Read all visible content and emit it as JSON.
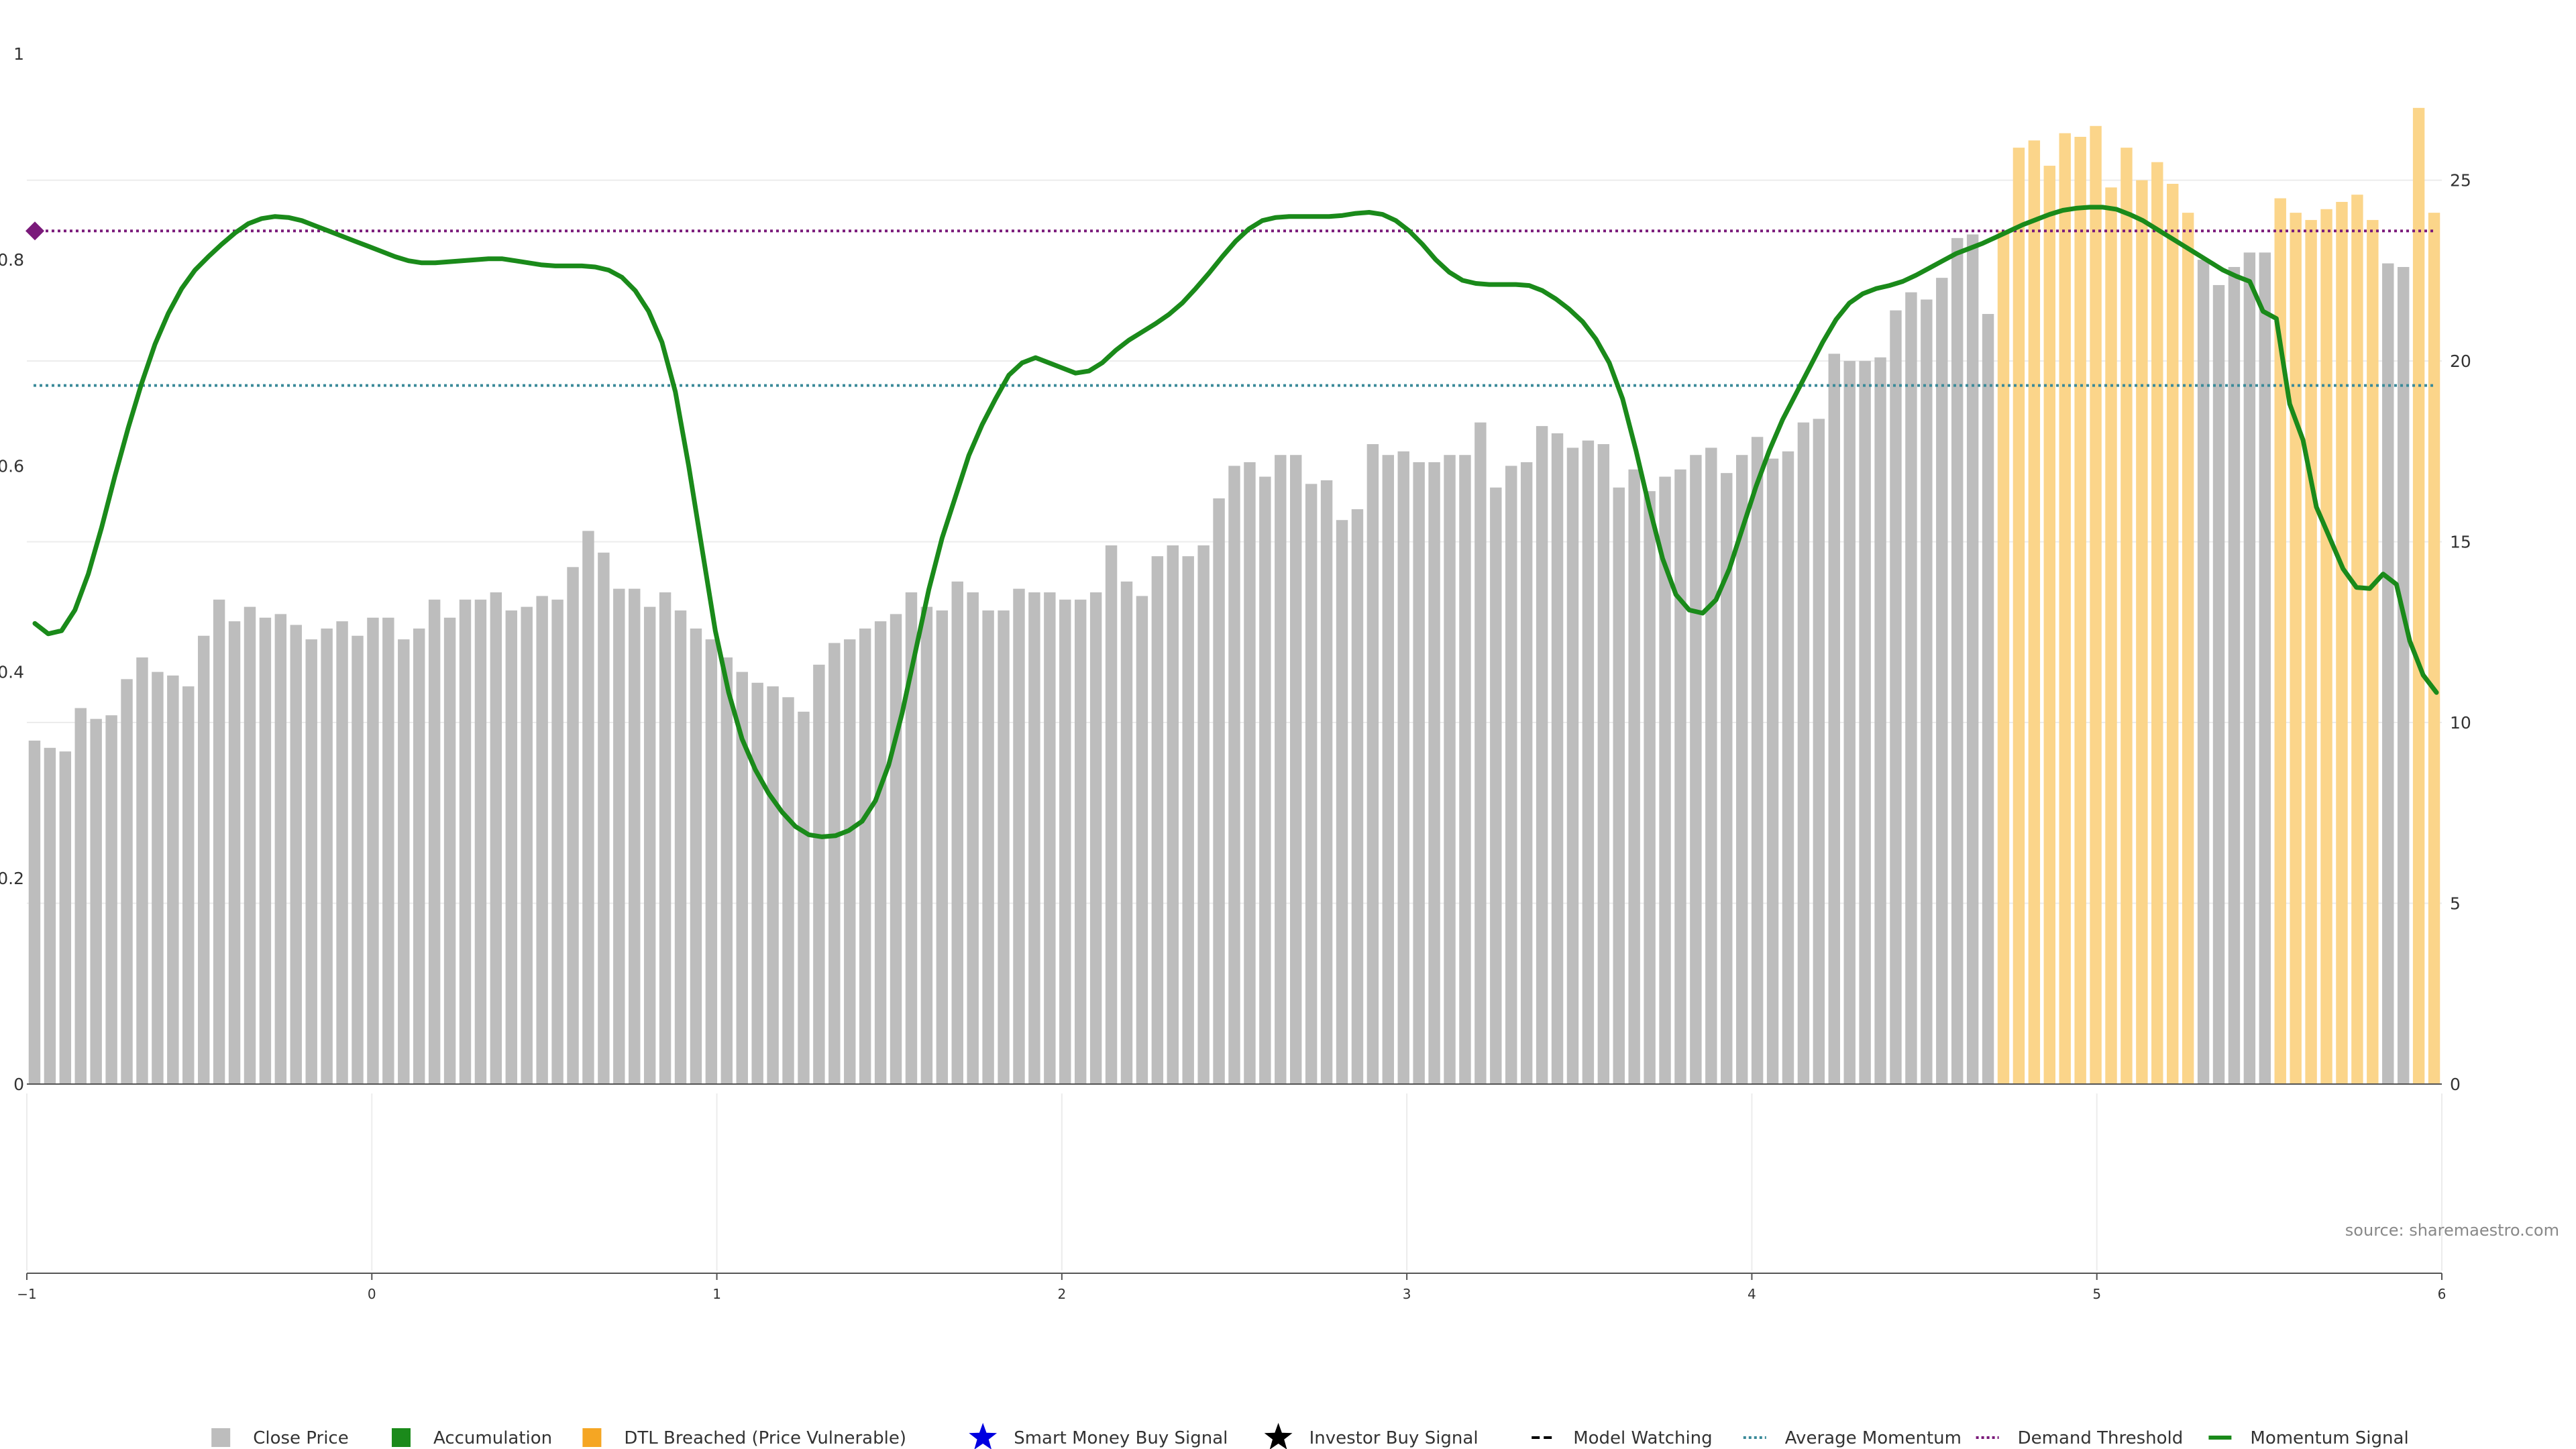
{
  "chart_data": {
    "type": "bar",
    "title": "",
    "xlabel": "",
    "ylabel": "",
    "y_left": {
      "ticks": [
        "0",
        "0.2",
        "0.4",
        "0.6",
        "0.8",
        "1"
      ],
      "range": [
        0,
        1
      ]
    },
    "y_right": {
      "ticks": [
        "0",
        "5",
        "10",
        "15",
        "20",
        "25"
      ],
      "range": [
        0,
        28.5
      ]
    },
    "x_axis": {
      "ticks": [
        "−1",
        "0",
        "1",
        "2",
        "3",
        "4",
        "5",
        "6"
      ],
      "range": [
        -1,
        6
      ]
    },
    "grid": true,
    "legend_position": "bottom",
    "close_price": [
      9.5,
      9.3,
      9.2,
      10.4,
      10.1,
      10.2,
      11.2,
      11.8,
      11.4,
      11.3,
      11.0,
      12.4,
      13.4,
      12.8,
      13.2,
      12.9,
      13.0,
      12.7,
      12.3,
      12.6,
      12.8,
      12.4,
      12.9,
      12.9,
      12.3,
      12.6,
      13.4,
      12.9,
      13.4,
      13.4,
      13.6,
      13.1,
      13.2,
      13.5,
      13.4,
      14.3,
      15.3,
      14.7,
      13.7,
      13.7,
      13.2,
      13.6,
      13.1,
      12.6,
      12.3,
      11.8,
      11.4,
      11.1,
      11.0,
      10.7,
      10.3,
      11.6,
      12.2,
      12.3,
      12.6,
      12.8,
      13.0,
      13.6,
      13.2,
      13.1,
      13.9,
      13.6,
      13.1,
      13.1,
      13.7,
      13.6,
      13.6,
      13.4,
      13.4,
      13.6,
      14.9,
      13.9,
      13.5,
      14.6,
      14.9,
      14.6,
      14.9,
      16.2,
      17.1,
      17.2,
      16.8,
      17.4,
      17.4,
      16.6,
      16.7,
      15.6,
      15.9,
      17.7,
      17.4,
      17.5,
      17.2,
      17.2,
      17.4,
      17.4,
      18.3,
      16.5,
      17.1,
      17.2,
      18.2,
      18.0,
      17.6,
      17.8,
      17.7,
      16.5,
      17.0,
      16.4,
      16.8,
      17.0,
      17.4,
      17.6,
      16.9,
      17.4,
      17.9,
      17.3,
      17.5,
      18.3,
      18.4,
      20.2,
      20.0,
      20.0,
      20.1,
      21.4,
      21.9,
      21.7,
      22.3,
      23.4,
      23.5,
      21.3
    ],
    "dtl_breached": [
      23.6,
      25.9,
      26.1,
      25.4,
      26.3,
      26.2,
      26.5,
      24.8,
      25.9,
      25.0,
      25.5,
      24.9,
      24.1,
      22.8,
      22.1,
      22.6,
      23.0,
      23.0,
      24.5,
      24.1,
      23.9,
      24.2,
      24.4,
      24.6,
      23.9,
      22.7,
      22.6,
      27.0,
      24.1
    ],
    "bar_colors": {
      "close_price": [
        "#bdbdbd",
        "#bdbdbd"
      ],
      "dtl_breached": [
        "#fbd58a",
        "#bdbdbd",
        "#fbd58a",
        "#bdbdbd",
        "#fbd58a",
        "#bdbdbd",
        "#fbd58a"
      ],
      "pattern_counts": [
        13,
        6,
        5,
        3,
        2
      ]
    },
    "momentum_signal": [
      0.447,
      0.437,
      0.44,
      0.46,
      0.495,
      0.54,
      0.59,
      0.637,
      0.68,
      0.718,
      0.748,
      0.772,
      0.79,
      0.803,
      0.815,
      0.826,
      0.835,
      0.84,
      0.842,
      0.841,
      0.838,
      0.833,
      0.828,
      0.823,
      0.818,
      0.813,
      0.808,
      0.803,
      0.799,
      0.797,
      0.797,
      0.798,
      0.799,
      0.8,
      0.801,
      0.801,
      0.799,
      0.797,
      0.795,
      0.794,
      0.794,
      0.794,
      0.793,
      0.79,
      0.783,
      0.77,
      0.75,
      0.72,
      0.672,
      0.6,
      0.52,
      0.44,
      0.38,
      0.335,
      0.305,
      0.282,
      0.264,
      0.25,
      0.242,
      0.24,
      0.241,
      0.246,
      0.255,
      0.275,
      0.31,
      0.36,
      0.42,
      0.48,
      0.53,
      0.57,
      0.61,
      0.64,
      0.665,
      0.688,
      0.7,
      0.705,
      0.7,
      0.695,
      0.69,
      0.692,
      0.7,
      0.712,
      0.722,
      0.73,
      0.738,
      0.747,
      0.758,
      0.772,
      0.787,
      0.803,
      0.818,
      0.83,
      0.838,
      0.841,
      0.842,
      0.842,
      0.842,
      0.842,
      0.843,
      0.845,
      0.846,
      0.844,
      0.838,
      0.828,
      0.815,
      0.8,
      0.788,
      0.78,
      0.777,
      0.776,
      0.776,
      0.776,
      0.775,
      0.77,
      0.762,
      0.752,
      0.74,
      0.723,
      0.7,
      0.665,
      0.615,
      0.56,
      0.51,
      0.475,
      0.46,
      0.457,
      0.47,
      0.5,
      0.54,
      0.58,
      0.615,
      0.645,
      0.67,
      0.695,
      0.72,
      0.742,
      0.758,
      0.767,
      0.772,
      0.775,
      0.779,
      0.785,
      0.792,
      0.799,
      0.806,
      0.811,
      0.816,
      0.822,
      0.828,
      0.834,
      0.839,
      0.844,
      0.848,
      0.85,
      0.851,
      0.851,
      0.849,
      0.844,
      0.838,
      0.83,
      0.822,
      0.814,
      0.806,
      0.798,
      0.79,
      0.784,
      0.779,
      0.75,
      0.743,
      0.66,
      0.625,
      0.56,
      0.53,
      0.5,
      0.482,
      0.481,
      0.495,
      0.485,
      0.43,
      0.397,
      0.38
    ],
    "average_momentum": 0.678,
    "demand_threshold": 0.828,
    "demand_threshold_marker": 0.828,
    "colors": {
      "close_price": "#bdbdbd",
      "dtl_breached": "#fbd58a",
      "accumulation": "#1b8a1b",
      "dtl_legend": "#f5a623",
      "momentum": "#1a8a1a",
      "average_momentum": "#3a8a99",
      "demand_threshold": "#7a1a7a",
      "smart_money": "#0000e0",
      "investor": "#000000",
      "model_watching": "#000000"
    }
  },
  "legend": [
    {
      "label": "Close Price",
      "kind": "square",
      "color": "#bdbdbd",
      "icon": "square-icon"
    },
    {
      "label": "Accumulation",
      "kind": "square",
      "color": "#1b8a1b",
      "icon": "square-icon"
    },
    {
      "label": "DTL Breached (Price Vulnerable)",
      "kind": "square",
      "color": "#f5a623",
      "icon": "square-icon"
    },
    {
      "label": "Smart Money Buy Signal",
      "kind": "star",
      "color": "#0000e0",
      "icon": "star-icon"
    },
    {
      "label": "Investor Buy Signal",
      "kind": "star",
      "color": "#000000",
      "icon": "star-icon"
    },
    {
      "label": "Model Watching",
      "kind": "dash",
      "color": "#000000",
      "icon": "dash-line-icon"
    },
    {
      "label": "Average Momentum",
      "kind": "dotted",
      "color": "#3a8a99",
      "icon": "dotted-line-icon"
    },
    {
      "label": "Demand Threshold",
      "kind": "dotted",
      "color": "#7a1a7a",
      "icon": "dotted-line-icon"
    },
    {
      "label": "Momentum Signal",
      "kind": "solid",
      "color": "#1a8a1a",
      "icon": "solid-line-icon"
    }
  ],
  "source": "source: sharemaestro.com"
}
